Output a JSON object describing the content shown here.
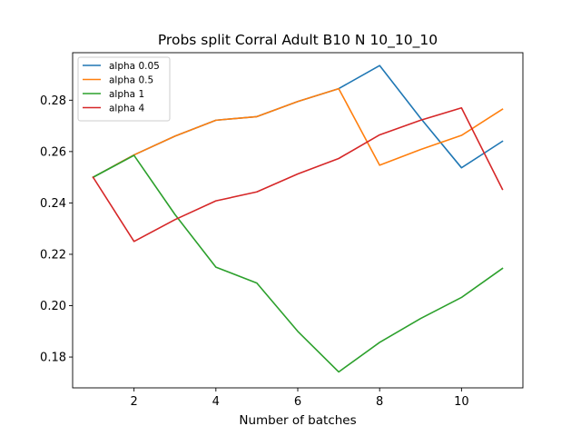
{
  "chart_data": {
    "type": "line",
    "title": "Probs split Corral Adult B10 N 10_10_10",
    "xlabel": "Number of batches",
    "ylabel": "",
    "xlim": [
      0.5,
      11.5
    ],
    "ylim": [
      0.168,
      0.2985
    ],
    "xticks": [
      2,
      4,
      6,
      8,
      10
    ],
    "xtick_labels": [
      "2",
      "4",
      "6",
      "8",
      "10"
    ],
    "yticks": [
      0.18,
      0.2,
      0.22,
      0.24,
      0.26,
      0.28
    ],
    "ytick_labels": [
      "0.18",
      "0.20",
      "0.22",
      "0.24",
      "0.26",
      "0.28"
    ],
    "grid": false,
    "legend_position": "top-left",
    "x": [
      1,
      2,
      3,
      4,
      5,
      6,
      7,
      8,
      9,
      10,
      11
    ],
    "series": [
      {
        "name": "alpha 0.05",
        "color": "#1f77b4",
        "values": [
          0.25,
          0.2587,
          0.266,
          0.2722,
          0.2736,
          0.2795,
          0.2845,
          0.2935,
          0.273,
          0.2537,
          0.264
        ]
      },
      {
        "name": "alpha 0.5",
        "color": "#ff7f0e",
        "values": [
          0.25,
          0.2587,
          0.266,
          0.2722,
          0.2736,
          0.2795,
          0.2845,
          0.2547,
          0.2608,
          0.2663,
          0.2765
        ]
      },
      {
        "name": "alpha 1",
        "color": "#2ca02c",
        "values": [
          0.25,
          0.2585,
          0.2355,
          0.215,
          0.2088,
          0.19,
          0.1742,
          0.1857,
          0.195,
          0.2032,
          0.2145
        ]
      },
      {
        "name": "alpha 4",
        "color": "#d62728",
        "values": [
          0.25,
          0.225,
          0.2335,
          0.2408,
          0.2443,
          0.2513,
          0.2573,
          0.2665,
          0.2722,
          0.277,
          0.2453
        ]
      }
    ]
  }
}
